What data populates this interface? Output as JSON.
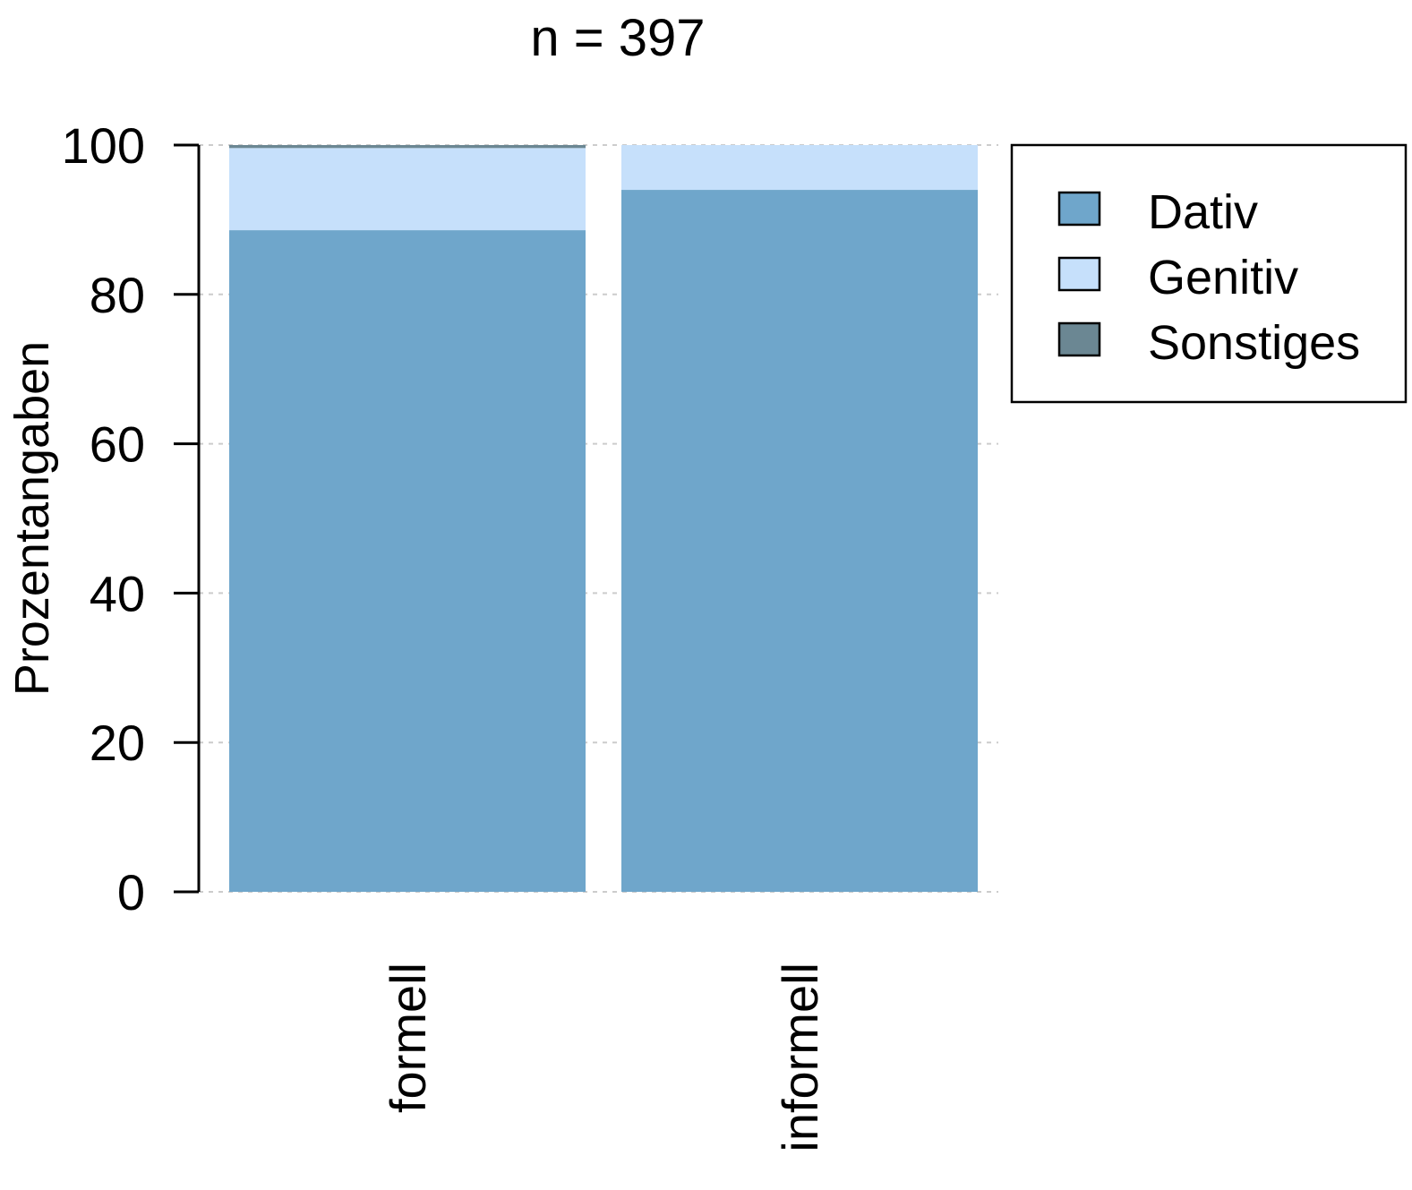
{
  "colors": {
    "Dativ": "#6fa6cb",
    "Genitiv": "#c6e0fb",
    "Sonstiges": "#6b8793",
    "grid": "#cccccc",
    "axis": "#000000"
  },
  "chart_data": {
    "type": "bar",
    "stacked": true,
    "title": "n = 397",
    "xlabel": "",
    "ylabel": "Prozentangaben",
    "ylim": [
      0,
      100
    ],
    "yticks": [
      "0",
      "20",
      "40",
      "60",
      "80",
      "100"
    ],
    "grid": true,
    "legend_position": "top-right",
    "categories": [
      "formell",
      "informell"
    ],
    "series": [
      {
        "name": "Dativ",
        "values": [
          88.6,
          94.0
        ]
      },
      {
        "name": "Genitiv",
        "values": [
          11.0,
          6.0
        ]
      },
      {
        "name": "Sonstiges",
        "values": [
          0.4,
          0.0
        ]
      }
    ]
  }
}
